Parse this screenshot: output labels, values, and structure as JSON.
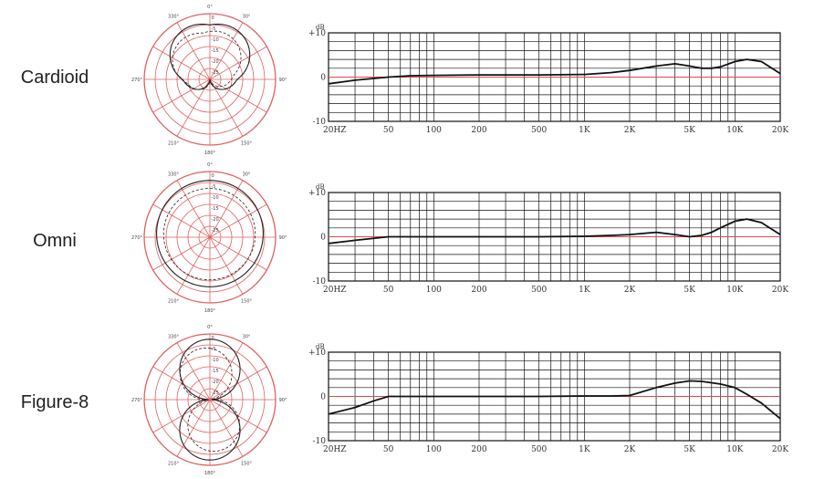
{
  "chart_data": [
    {
      "type": "line",
      "pattern": "Cardioid",
      "ylabel": "dB",
      "x_tick_labels": [
        "20HZ",
        "50",
        "100",
        "200",
        "500",
        "1K",
        "2K",
        "5K",
        "10K",
        "20K"
      ],
      "x_tick_values": [
        20,
        50,
        100,
        200,
        500,
        1000,
        2000,
        5000,
        10000,
        20000
      ],
      "y_tick_labels": [
        "+10",
        "0",
        "-10"
      ],
      "xlim": [
        20,
        20000
      ],
      "ylim": [
        -10,
        10
      ],
      "x_scale": "log",
      "grid": true,
      "reference_line": 0,
      "series": [
        {
          "x": [
            20,
            30,
            50,
            70,
            100,
            200,
            500,
            1000,
            1500,
            2000,
            3000,
            4000,
            5000,
            6000,
            7000,
            8000,
            10000,
            12000,
            15000,
            20000
          ],
          "y": [
            -1.5,
            -0.7,
            0,
            0.3,
            0.4,
            0.5,
            0.5,
            0.6,
            1,
            1.5,
            2.5,
            3,
            2.5,
            2,
            2,
            2.3,
            3.5,
            4,
            3.5,
            0.8
          ]
        }
      ],
      "polar": {
        "ring_labels": [
          "0",
          "-5",
          "-10",
          "-15",
          "-20",
          "-25"
        ],
        "angle_labels": [
          "0°",
          "30°",
          "90°",
          "150°",
          "180°",
          "210°",
          "270°",
          "330°"
        ]
      }
    },
    {
      "type": "line",
      "pattern": "Omni",
      "ylabel": "dB",
      "x_tick_labels": [
        "20HZ",
        "50",
        "100",
        "200",
        "500",
        "1K",
        "2K",
        "5K",
        "10K",
        "20K"
      ],
      "x_tick_values": [
        20,
        50,
        100,
        200,
        500,
        1000,
        2000,
        5000,
        10000,
        20000
      ],
      "y_tick_labels": [
        "+10",
        "0",
        "-10"
      ],
      "xlim": [
        20,
        20000
      ],
      "ylim": [
        -10,
        10
      ],
      "x_scale": "log",
      "grid": true,
      "reference_line": 0,
      "series": [
        {
          "x": [
            20,
            30,
            50,
            70,
            100,
            200,
            500,
            1000,
            1500,
            2000,
            3000,
            4000,
            5000,
            6000,
            7000,
            8000,
            10000,
            12000,
            15000,
            20000
          ],
          "y": [
            -1.5,
            -0.8,
            0,
            0,
            0,
            0,
            0,
            0.1,
            0.3,
            0.5,
            1,
            0.5,
            0,
            0.3,
            1,
            2,
            3.5,
            4,
            3.2,
            0.5
          ]
        }
      ],
      "polar": {
        "ring_labels": [
          "0",
          "-5",
          "-10",
          "-15",
          "-20",
          "-25"
        ],
        "angle_labels": [
          "0°",
          "30°",
          "90°",
          "150°",
          "180°",
          "210°",
          "270°",
          "330°"
        ]
      }
    },
    {
      "type": "line",
      "pattern": "Figure-8",
      "ylabel": "dB",
      "x_tick_labels": [
        "20HZ",
        "50",
        "100",
        "200",
        "500",
        "1K",
        "2K",
        "5K",
        "10K",
        "20K"
      ],
      "x_tick_values": [
        20,
        50,
        100,
        200,
        500,
        1000,
        2000,
        5000,
        10000,
        20000
      ],
      "y_tick_labels": [
        "+10",
        "0",
        "-10"
      ],
      "xlim": [
        20,
        20000
      ],
      "ylim": [
        -10,
        10
      ],
      "x_scale": "log",
      "grid": true,
      "reference_line": 0,
      "series": [
        {
          "x": [
            20,
            30,
            40,
            50,
            70,
            100,
            200,
            500,
            1000,
            1500,
            2000,
            3000,
            4000,
            5000,
            6000,
            8000,
            10000,
            12000,
            15000,
            20000
          ],
          "y": [
            -4,
            -2.5,
            -1,
            0,
            0,
            0,
            0,
            0,
            0.1,
            0.1,
            0.2,
            2,
            3,
            3.5,
            3.4,
            2.8,
            2,
            0.5,
            -1.5,
            -5
          ]
        }
      ],
      "polar": {
        "ring_labels": [
          "0",
          "-5",
          "-10",
          "-15",
          "-20",
          "-25"
        ],
        "angle_labels": [
          "0°",
          "30°",
          "90°",
          "150°",
          "180°",
          "210°",
          "270°",
          "330°"
        ]
      }
    }
  ],
  "colors": {
    "grid": "#111111",
    "reference": "#e04a4a",
    "polar": "#e06060",
    "curve": "#111111"
  }
}
